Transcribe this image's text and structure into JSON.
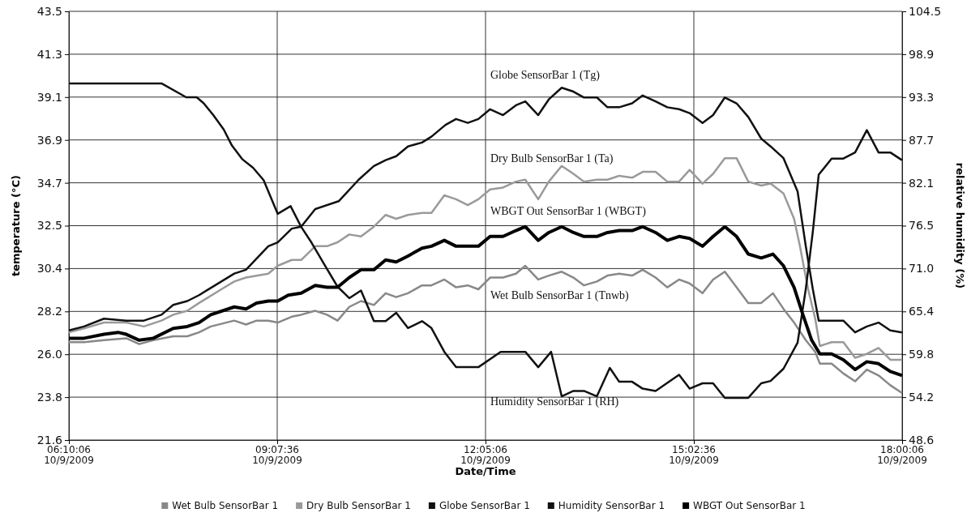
{
  "chart_data": {
    "type": "line",
    "xlabel": "Date/Time",
    "ylabel": "temperature (°C)",
    "y2label": "relative humidity (%)",
    "xlim": [
      "2009-10-09T06:10:06",
      "2009-10-09T18:00:06"
    ],
    "xticks": [
      {
        "value": "2009-10-09T06:10:06",
        "label": "06:10:06\n10/9/2009"
      },
      {
        "value": "2009-10-09T09:07:36",
        "label": "09:07:36\n10/9/2009"
      },
      {
        "value": "2009-10-09T12:05:06",
        "label": "12:05:06\n10/9/2009"
      },
      {
        "value": "2009-10-09T15:02:36",
        "label": "15:02:36\n10/9/2009"
      },
      {
        "value": "2009-10-09T18:00:06",
        "label": "18:00:06\n10/9/2009"
      }
    ],
    "ylim": [
      21.6,
      43.5
    ],
    "yticks": [
      21.6,
      {
        "value": 23.79,
        "label": "23.8"
      },
      {
        "value": 25.98,
        "label": "26.0"
      },
      {
        "value": 28.17,
        "label": "28.2"
      },
      {
        "value": 30.36,
        "label": "30.4"
      },
      {
        "value": 32.55,
        "label": "32.5"
      },
      {
        "value": 34.74,
        "label": "34.7"
      },
      {
        "value": 36.93,
        "label": "36.9"
      },
      {
        "value": 39.12,
        "label": "39.1"
      },
      {
        "value": 41.31,
        "label": "41.3"
      },
      43.5
    ],
    "y2lim": [
      48.6,
      104.5
    ],
    "y2ticks": [
      48.6,
      {
        "value": 54.19,
        "label": "54.2"
      },
      {
        "value": 59.78,
        "label": "59.8"
      },
      {
        "value": 65.37,
        "label": "65.4"
      },
      {
        "value": 70.96,
        "label": "71.0"
      },
      {
        "value": 76.55,
        "label": "76.5"
      },
      {
        "value": 82.14,
        "label": "82.1"
      },
      {
        "value": 87.73,
        "label": "87.7"
      },
      {
        "value": 93.32,
        "label": "93.3"
      },
      {
        "value": 98.91,
        "label": "98.9"
      },
      104.5
    ],
    "grid": true,
    "legend": "bottom",
    "annotations": [
      "Globe SensorBar 1 (Tg)",
      "Dry Bulb SensorBar 1 (Ta)",
      "WBGT Out SensorBar 1 (WBGT)",
      "Wet Bulb SensorBar 1 (Tnwb)",
      "Humidity SensorBar 1 (RH)"
    ],
    "series": [
      {
        "name": "Wet Bulb SensorBar 1",
        "color": "#888888",
        "x": [
          "2009-10-09T06:10:06",
          "2009-10-09T06:23",
          "2009-10-09T06:40",
          "2009-10-09T06:59",
          "2009-10-09T07:10",
          "2009-10-09T07:22",
          "2009-10-09T07:39",
          "2009-10-09T07:51",
          "2009-10-09T08:01",
          "2009-10-09T08:11",
          "2009-10-09T08:31",
          "2009-10-09T08:41",
          "2009-10-09T08:50",
          "2009-10-09T09:00",
          "2009-10-09T09:08",
          "2009-10-09T09:20",
          "2009-10-09T09:28",
          "2009-10-09T09:40",
          "2009-10-09T09:50",
          "2009-10-09T09:59",
          "2009-10-09T10:09",
          "2009-10-09T10:19",
          "2009-10-09T10:30",
          "2009-10-09T10:40",
          "2009-10-09T10:49",
          "2009-10-09T10:59",
          "2009-10-09T11:11",
          "2009-10-09T11:19",
          "2009-10-09T11:30",
          "2009-10-09T11:40",
          "2009-10-09T11:50",
          "2009-10-09T11:59",
          "2009-10-09T12:09",
          "2009-10-09T12:20",
          "2009-10-09T12:31",
          "2009-10-09T12:39",
          "2009-10-09T12:50",
          "2009-10-09T12:59",
          "2009-10-09T13:10",
          "2009-10-09T13:20",
          "2009-10-09T13:29",
          "2009-10-09T13:40",
          "2009-10-09T13:49",
          "2009-10-09T13:59",
          "2009-10-09T14:10",
          "2009-10-09T14:19",
          "2009-10-09T14:30",
          "2009-10-09T14:40",
          "2009-10-09T14:50",
          "2009-10-09T14:59",
          "2009-10-09T15:10",
          "2009-10-09T15:19",
          "2009-10-09T15:29",
          "2009-10-09T15:39",
          "2009-10-09T15:49",
          "2009-10-09T16:00",
          "2009-10-09T16:10",
          "2009-10-09T16:19",
          "2009-10-09T16:28",
          "2009-10-09T16:38",
          "2009-10-09T16:46",
          "2009-10-09T16:50",
          "2009-10-09T17:00",
          "2009-10-09T17:10",
          "2009-10-09T17:20",
          "2009-10-09T17:30",
          "2009-10-09T17:40",
          "2009-10-09T17:50",
          "2009-10-09T18:00"
        ],
        "values": [
          26.6,
          26.6,
          26.7,
          26.8,
          26.5,
          26.7,
          26.9,
          26.9,
          27.1,
          27.4,
          27.7,
          27.5,
          27.7,
          27.7,
          27.6,
          27.9,
          28.0,
          28.2,
          28.0,
          27.7,
          28.4,
          28.7,
          28.5,
          29.1,
          28.9,
          29.1,
          29.5,
          29.5,
          29.8,
          29.4,
          29.5,
          29.3,
          29.9,
          29.9,
          30.1,
          30.5,
          29.8,
          30.0,
          30.2,
          29.9,
          29.5,
          29.7,
          30.0,
          30.1,
          30.0,
          30.3,
          29.9,
          29.4,
          29.8,
          29.6,
          29.1,
          29.8,
          30.2,
          29.4,
          28.6,
          28.6,
          29.1,
          28.3,
          27.6,
          26.7,
          26.1,
          25.5,
          25.5,
          25.0,
          24.6,
          25.2,
          24.9,
          24.4,
          24.0
        ]
      },
      {
        "name": "Dry Bulb SensorBar 1",
        "color": "#9a9a9a",
        "x": [
          "2009-10-09T06:10:06",
          "2009-10-09T06:23",
          "2009-10-09T06:40",
          "2009-10-09T06:59",
          "2009-10-09T07:14",
          "2009-10-09T07:29",
          "2009-10-09T07:39",
          "2009-10-09T07:51",
          "2009-10-09T08:01",
          "2009-10-09T08:20",
          "2009-10-09T08:31",
          "2009-10-09T08:41",
          "2009-10-09T09:00",
          "2009-10-09T09:08",
          "2009-10-09T09:20",
          "2009-10-09T09:28",
          "2009-10-09T09:40",
          "2009-10-09T09:50",
          "2009-10-09T09:59",
          "2009-10-09T10:09",
          "2009-10-09T10:19",
          "2009-10-09T10:30",
          "2009-10-09T10:40",
          "2009-10-09T10:49",
          "2009-10-09T10:59",
          "2009-10-09T11:11",
          "2009-10-09T11:19",
          "2009-10-09T11:30",
          "2009-10-09T11:40",
          "2009-10-09T11:50",
          "2009-10-09T11:59",
          "2009-10-09T12:09",
          "2009-10-09T12:20",
          "2009-10-09T12:31",
          "2009-10-09T12:39",
          "2009-10-09T12:50",
          "2009-10-09T12:59",
          "2009-10-09T13:10",
          "2009-10-09T13:20",
          "2009-10-09T13:29",
          "2009-10-09T13:40",
          "2009-10-09T13:49",
          "2009-10-09T13:59",
          "2009-10-09T14:10",
          "2009-10-09T14:19",
          "2009-10-09T14:30",
          "2009-10-09T14:40",
          "2009-10-09T14:50",
          "2009-10-09T14:59",
          "2009-10-09T15:10",
          "2009-10-09T15:19",
          "2009-10-09T15:29",
          "2009-10-09T15:39",
          "2009-10-09T15:49",
          "2009-10-09T16:00",
          "2009-10-09T16:08",
          "2009-10-09T16:19",
          "2009-10-09T16:28",
          "2009-10-09T16:33",
          "2009-10-09T16:40",
          "2009-10-09T16:46",
          "2009-10-09T16:50",
          "2009-10-09T17:00",
          "2009-10-09T17:10",
          "2009-10-09T17:20",
          "2009-10-09T17:30",
          "2009-10-09T17:40",
          "2009-10-09T17:50",
          "2009-10-09T18:00"
        ],
        "values": [
          27.1,
          27.3,
          27.6,
          27.6,
          27.4,
          27.7,
          28.0,
          28.2,
          28.6,
          29.3,
          29.7,
          29.9,
          30.1,
          30.5,
          30.8,
          30.8,
          31.5,
          31.5,
          31.7,
          32.1,
          32.0,
          32.5,
          33.1,
          32.9,
          33.1,
          33.2,
          33.2,
          34.1,
          33.9,
          33.6,
          33.9,
          34.4,
          34.5,
          34.8,
          34.9,
          33.9,
          34.8,
          35.6,
          35.2,
          34.8,
          34.9,
          34.9,
          35.1,
          35.0,
          35.3,
          35.3,
          34.8,
          34.8,
          35.4,
          34.7,
          35.2,
          36.0,
          36.0,
          34.8,
          34.6,
          34.7,
          34.2,
          32.9,
          31.5,
          29.3,
          27.8,
          26.4,
          26.6,
          26.6,
          25.8,
          26.0,
          26.3,
          25.7,
          25.7
        ]
      },
      {
        "name": "Globe SensorBar 1",
        "color": "#111111",
        "x": [
          "2009-10-09T06:10:06",
          "2009-10-09T06:23",
          "2009-10-09T06:40",
          "2009-10-09T06:59",
          "2009-10-09T07:14",
          "2009-10-09T07:29",
          "2009-10-09T07:39",
          "2009-10-09T07:51",
          "2009-10-09T08:01",
          "2009-10-09T08:20",
          "2009-10-09T08:31",
          "2009-10-09T08:41",
          "2009-10-09T09:00",
          "2009-10-09T09:08",
          "2009-10-09T09:20",
          "2009-10-09T09:28",
          "2009-10-09T09:40",
          "2009-10-09T10:00",
          "2009-10-09T10:17",
          "2009-10-09T10:30",
          "2009-10-09T10:40",
          "2009-10-09T10:49",
          "2009-10-09T10:59",
          "2009-10-09T11:11",
          "2009-10-09T11:19",
          "2009-10-09T11:31",
          "2009-10-09T11:40",
          "2009-10-09T11:50",
          "2009-10-09T11:59",
          "2009-10-09T12:09",
          "2009-10-09T12:20",
          "2009-10-09T12:31",
          "2009-10-09T12:39",
          "2009-10-09T12:50",
          "2009-10-09T12:59",
          "2009-10-09T13:10",
          "2009-10-09T13:20",
          "2009-10-09T13:29",
          "2009-10-09T13:40",
          "2009-10-09T13:49",
          "2009-10-09T13:59",
          "2009-10-09T14:10",
          "2009-10-09T14:19",
          "2009-10-09T14:30",
          "2009-10-09T14:40",
          "2009-10-09T14:50",
          "2009-10-09T14:59",
          "2009-10-09T15:10",
          "2009-10-09T15:19",
          "2009-10-09T15:29",
          "2009-10-09T15:39",
          "2009-10-09T15:49",
          "2009-10-09T16:00",
          "2009-10-09T16:08",
          "2009-10-09T16:19",
          "2009-10-09T16:31",
          "2009-10-09T16:38",
          "2009-10-09T16:44",
          "2009-10-09T16:49",
          "2009-10-09T17:00",
          "2009-10-09T17:10",
          "2009-10-09T17:20",
          "2009-10-09T17:30",
          "2009-10-09T17:40",
          "2009-10-09T17:50",
          "2009-10-09T18:00"
        ],
        "values": [
          27.2,
          27.4,
          27.8,
          27.7,
          27.7,
          28.0,
          28.5,
          28.7,
          29.0,
          29.7,
          30.1,
          30.3,
          31.5,
          31.7,
          32.4,
          32.5,
          33.4,
          33.8,
          34.9,
          35.6,
          35.9,
          36.1,
          36.6,
          36.8,
          37.1,
          37.7,
          38.0,
          37.8,
          38.0,
          38.5,
          38.2,
          38.7,
          38.9,
          38.2,
          39.0,
          39.6,
          39.4,
          39.1,
          39.1,
          38.6,
          38.6,
          38.8,
          39.2,
          38.9,
          38.6,
          38.5,
          38.3,
          37.8,
          38.2,
          39.1,
          38.8,
          38.1,
          37.0,
          36.6,
          36.0,
          34.3,
          31.5,
          29.3,
          27.7,
          27.7,
          27.7,
          27.1,
          27.4,
          27.6,
          27.2,
          27.1
        ]
      },
      {
        "name": "Humidity SensorBar 1",
        "color": "#111111",
        "axis": "y2",
        "x": [
          "2009-10-09T06:10:06",
          "2009-10-09T07:29",
          "2009-10-09T07:50",
          "2009-10-09T07:59",
          "2009-10-09T08:05",
          "2009-10-09T08:13",
          "2009-10-09T08:22",
          "2009-10-09T08:29",
          "2009-10-09T08:38",
          "2009-10-09T08:47",
          "2009-10-09T08:56",
          "2009-10-09T09:08",
          "2009-10-09T09:19",
          "2009-10-09T09:28",
          "2009-10-09T09:37",
          "2009-10-09T09:50",
          "2009-10-09T09:59",
          "2009-10-09T10:09",
          "2009-10-09T10:19",
          "2009-10-09T10:30",
          "2009-10-09T10:40",
          "2009-10-09T10:49",
          "2009-10-09T10:59",
          "2009-10-09T11:11",
          "2009-10-09T11:19",
          "2009-10-09T11:30",
          "2009-10-09T11:40",
          "2009-10-09T11:59",
          "2009-10-09T12:18",
          "2009-10-09T12:39",
          "2009-10-09T12:50",
          "2009-10-09T13:01",
          "2009-10-09T13:10",
          "2009-10-09T13:20",
          "2009-10-09T13:29",
          "2009-10-09T13:40",
          "2009-10-09T13:51",
          "2009-10-09T13:59",
          "2009-10-09T14:10",
          "2009-10-09T14:19",
          "2009-10-09T14:30",
          "2009-10-09T14:50",
          "2009-10-09T14:59",
          "2009-10-09T15:10",
          "2009-10-09T15:19",
          "2009-10-09T15:29",
          "2009-10-09T15:49",
          "2009-10-09T16:00",
          "2009-10-09T16:08",
          "2009-10-09T16:19",
          "2009-10-09T16:31",
          "2009-10-09T16:38",
          "2009-10-09T16:44",
          "2009-10-09T16:49",
          "2009-10-09T17:00",
          "2009-10-09T17:10",
          "2009-10-09T17:20",
          "2009-10-09T17:30",
          "2009-10-09T17:40",
          "2009-10-09T17:50",
          "2009-10-09T18:00"
        ],
        "values": [
          95.1,
          95.1,
          93.3,
          93.3,
          92.5,
          91.0,
          89.1,
          87.0,
          85.2,
          84.1,
          82.5,
          78.1,
          79.1,
          76.4,
          74.3,
          70.9,
          68.6,
          67.1,
          68.1,
          64.1,
          64.1,
          65.2,
          63.2,
          64.1,
          63.2,
          60.1,
          58.1,
          58.1,
          60.1,
          60.1,
          58.1,
          60.1,
          54.3,
          55.0,
          55.0,
          54.3,
          58.0,
          56.2,
          56.2,
          55.3,
          55.0,
          57.1,
          55.3,
          56.0,
          56.0,
          54.1,
          54.1,
          56.0,
          56.3,
          57.9,
          61.3,
          68.3,
          75.8,
          83.2,
          85.3,
          85.3,
          86.1,
          89.0,
          86.1,
          86.1,
          85.1
        ]
      },
      {
        "name": "WBGT Out SensorBar 1",
        "color": "#000000",
        "x": [
          "2009-10-09T06:10:06",
          "2009-10-09T06:23",
          "2009-10-09T06:40",
          "2009-10-09T06:52",
          "2009-10-09T06:59",
          "2009-10-09T07:10",
          "2009-10-09T07:22",
          "2009-10-09T07:39",
          "2009-10-09T07:51",
          "2009-10-09T08:01",
          "2009-10-09T08:11",
          "2009-10-09T08:31",
          "2009-10-09T08:41",
          "2009-10-09T08:50",
          "2009-10-09T09:00",
          "2009-10-09T09:08",
          "2009-10-09T09:17",
          "2009-10-09T09:28",
          "2009-10-09T09:40",
          "2009-10-09T09:50",
          "2009-10-09T09:59",
          "2009-10-09T10:09",
          "2009-10-09T10:19",
          "2009-10-09T10:30",
          "2009-10-09T10:40",
          "2009-10-09T10:49",
          "2009-10-09T10:59",
          "2009-10-09T11:11",
          "2009-10-09T11:19",
          "2009-10-09T11:30",
          "2009-10-09T11:40",
          "2009-10-09T11:50",
          "2009-10-09T11:59",
          "2009-10-09T12:09",
          "2009-10-09T12:20",
          "2009-10-09T12:31",
          "2009-10-09T12:39",
          "2009-10-09T12:50",
          "2009-10-09T12:59",
          "2009-10-09T13:10",
          "2009-10-09T13:20",
          "2009-10-09T13:29",
          "2009-10-09T13:40",
          "2009-10-09T13:49",
          "2009-10-09T13:59",
          "2009-10-09T14:10",
          "2009-10-09T14:19",
          "2009-10-09T14:30",
          "2009-10-09T14:40",
          "2009-10-09T14:50",
          "2009-10-09T14:59",
          "2009-10-09T15:10",
          "2009-10-09T15:19",
          "2009-10-09T15:29",
          "2009-10-09T15:39",
          "2009-10-09T15:49",
          "2009-10-09T16:00",
          "2009-10-09T16:10",
          "2009-10-09T16:19",
          "2009-10-09T16:28",
          "2009-10-09T16:35",
          "2009-10-09T16:43",
          "2009-10-09T16:50",
          "2009-10-09T17:00",
          "2009-10-09T17:10",
          "2009-10-09T17:20",
          "2009-10-09T17:30",
          "2009-10-09T17:40",
          "2009-10-09T17:50",
          "2009-10-09T18:00"
        ],
        "values": [
          26.8,
          26.8,
          27.0,
          27.1,
          27.0,
          26.7,
          26.8,
          27.3,
          27.4,
          27.6,
          28.0,
          28.4,
          28.3,
          28.6,
          28.7,
          28.7,
          29.0,
          29.1,
          29.5,
          29.4,
          29.4,
          29.9,
          30.3,
          30.3,
          30.8,
          30.7,
          31.0,
          31.4,
          31.5,
          31.8,
          31.5,
          31.5,
          31.5,
          32.0,
          32.0,
          32.3,
          32.5,
          31.8,
          32.2,
          32.5,
          32.2,
          32.0,
          32.0,
          32.2,
          32.3,
          32.3,
          32.5,
          32.2,
          31.8,
          32.0,
          31.9,
          31.5,
          32.0,
          32.5,
          32.0,
          31.1,
          30.9,
          31.1,
          30.5,
          29.4,
          28.1,
          26.7,
          26.0,
          26.0,
          25.7,
          25.2,
          25.6,
          25.5,
          25.1,
          24.9
        ]
      }
    ]
  }
}
